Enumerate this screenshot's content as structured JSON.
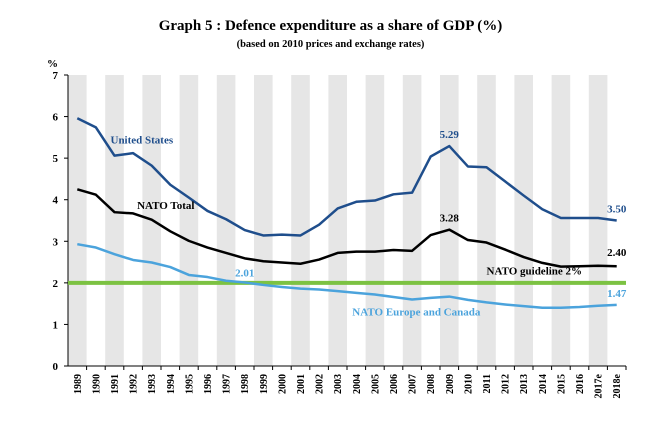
{
  "chart_data": {
    "type": "line",
    "title": "Graph 5 : Defence expenditure as a share of GDP (%)",
    "subtitle": "(based on 2010 prices and exchange rates)",
    "ylabel": "%",
    "xlabel": "",
    "ylim": [
      0,
      7
    ],
    "yticks": [
      "0",
      "1",
      "2",
      "3",
      "4",
      "5",
      "6",
      "7"
    ],
    "categories": [
      "1989",
      "1990",
      "1991",
      "1992",
      "1993",
      "1994",
      "1995",
      "1996",
      "1997",
      "1998",
      "1999",
      "2000",
      "2001",
      "2002",
      "2003",
      "2004",
      "2005",
      "2006",
      "2007",
      "2008",
      "2009",
      "2010",
      "2011",
      "2012",
      "2013",
      "2014",
      "2015",
      "2016",
      "2017e",
      "2018e"
    ],
    "series": [
      {
        "name": "United States",
        "color": "#1f4e8c",
        "values": [
          5.96,
          5.74,
          5.06,
          5.12,
          4.82,
          4.36,
          4.05,
          3.73,
          3.53,
          3.27,
          3.14,
          3.16,
          3.14,
          3.4,
          3.79,
          3.95,
          3.98,
          4.13,
          4.17,
          5.04,
          5.29,
          4.8,
          4.78,
          4.44,
          4.1,
          3.77,
          3.56,
          3.56,
          3.56,
          3.5
        ],
        "end_label": "3.50",
        "peak_label": "5.29"
      },
      {
        "name": "NATO Total",
        "color": "#000000",
        "values": [
          4.25,
          4.12,
          3.7,
          3.67,
          3.52,
          3.24,
          3.01,
          2.85,
          2.72,
          2.59,
          2.52,
          2.49,
          2.46,
          2.56,
          2.72,
          2.75,
          2.75,
          2.79,
          2.77,
          3.15,
          3.28,
          3.03,
          2.97,
          2.8,
          2.62,
          2.48,
          2.39,
          2.4,
          2.41,
          2.4
        ],
        "end_label": "2.40",
        "peak_label": "3.28"
      },
      {
        "name": "NATO Europe and Canada",
        "color": "#4ba3dc",
        "values": [
          2.93,
          2.85,
          2.69,
          2.55,
          2.49,
          2.38,
          2.19,
          2.14,
          2.05,
          2.01,
          1.95,
          1.9,
          1.86,
          1.84,
          1.8,
          1.76,
          1.72,
          1.66,
          1.6,
          1.64,
          1.67,
          1.59,
          1.53,
          1.48,
          1.44,
          1.4,
          1.4,
          1.42,
          1.45,
          1.47
        ],
        "end_label": "1.47",
        "mid_label": "2.01"
      }
    ],
    "reference_line": {
      "name": "NATO guideline 2%",
      "value": 2,
      "color": "#7cc242"
    },
    "annotation_colors": {
      "band": "#e6e6e6"
    }
  }
}
